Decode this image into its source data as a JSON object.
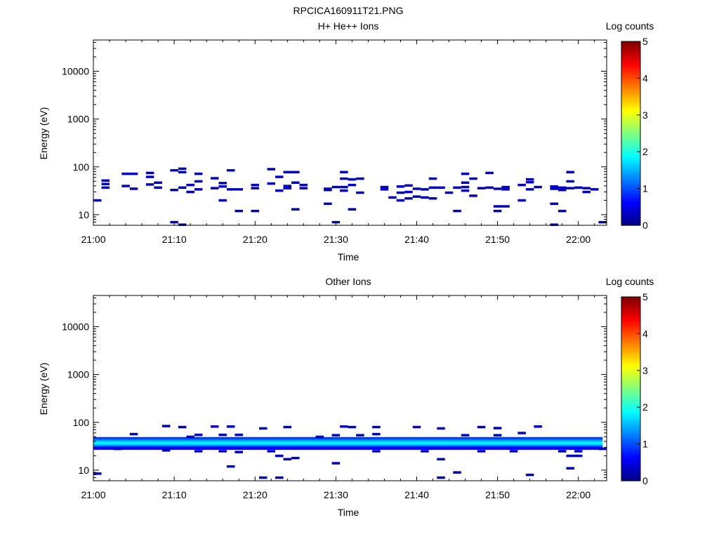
{
  "title": "RPCICA160911T21.PNG",
  "colormap": [
    "#00007f",
    "#0000ff",
    "#007fff",
    "#00ffff",
    "#7fff7f",
    "#ffff00",
    "#ff7f00",
    "#ff0000",
    "#7f0000"
  ],
  "chart_data": [
    {
      "type": "heatmap",
      "title": "H+ He++ Ions",
      "xlabel": "Time",
      "ylabel": "Energy (eV)",
      "y_scale": "log",
      "ylim": [
        6,
        45000
      ],
      "xlim": [
        "21:00",
        "22:03.5"
      ],
      "x_ticks": [
        "21:00",
        "21:10",
        "21:20",
        "21:30",
        "21:40",
        "21:50",
        "22:00"
      ],
      "y_ticks": [
        "10",
        "100",
        "1000",
        "10000"
      ],
      "colorbar": {
        "label": "Log counts",
        "range": [
          0,
          5
        ],
        "ticks": [
          "0",
          "1",
          "2",
          "3",
          "4",
          "5"
        ]
      },
      "cells": [
        {
          "t": "21:00.5",
          "e": 20,
          "v": 0.3
        },
        {
          "t": "21:01.5",
          "e": 52,
          "v": 0.3
        },
        {
          "t": "21:01.5",
          "e": 44,
          "v": 0.3
        },
        {
          "t": "21:01.5",
          "e": 37,
          "v": 0.3
        },
        {
          "t": "21:04",
          "e": 72,
          "v": 0.3
        },
        {
          "t": "21:04",
          "e": 40,
          "v": 0.3
        },
        {
          "t": "21:05",
          "e": 72,
          "v": 0.3
        },
        {
          "t": "21:05",
          "e": 35,
          "v": 0.2
        },
        {
          "t": "21:07",
          "e": 75,
          "v": 0.3
        },
        {
          "t": "21:07",
          "e": 62,
          "v": 0.3
        },
        {
          "t": "21:07",
          "e": 43,
          "v": 0.3
        },
        {
          "t": "21:08",
          "e": 47,
          "v": 0.3
        },
        {
          "t": "21:08",
          "e": 37,
          "v": 0.3
        },
        {
          "t": "21:10",
          "e": 85,
          "v": 0.3
        },
        {
          "t": "21:10",
          "e": 33,
          "v": 0.2
        },
        {
          "t": "21:10",
          "e": 7,
          "v": 0.3
        },
        {
          "t": "21:11",
          "e": 92,
          "v": 0.3
        },
        {
          "t": "21:11",
          "e": 78,
          "v": 0.3
        },
        {
          "t": "21:11",
          "e": 37,
          "v": 0.2
        },
        {
          "t": "21:11",
          "e": 6.2,
          "v": 0.3
        },
        {
          "t": "21:12",
          "e": 42,
          "v": 0.3
        },
        {
          "t": "21:12",
          "e": 30,
          "v": 0.2
        },
        {
          "t": "21:13",
          "e": 72,
          "v": 0.3
        },
        {
          "t": "21:13",
          "e": 50,
          "v": 0.3
        },
        {
          "t": "21:13",
          "e": 34,
          "v": 0.3
        },
        {
          "t": "21:15",
          "e": 58,
          "v": 0.3
        },
        {
          "t": "21:15",
          "e": 36,
          "v": 0.2
        },
        {
          "t": "21:16",
          "e": 46,
          "v": 0.3
        },
        {
          "t": "21:16",
          "e": 39,
          "v": 0.3
        },
        {
          "t": "21:16",
          "e": 20,
          "v": 0.3
        },
        {
          "t": "21:17",
          "e": 85,
          "v": 0.3
        },
        {
          "t": "21:17",
          "e": 34,
          "v": 0.3
        },
        {
          "t": "21:18",
          "e": 34,
          "v": 0.3
        },
        {
          "t": "21:18",
          "e": 12,
          "v": 0.3
        },
        {
          "t": "21:20",
          "e": 42,
          "v": 0.3
        },
        {
          "t": "21:20",
          "e": 36,
          "v": 0.2
        },
        {
          "t": "21:20",
          "e": 12,
          "v": 0.3
        },
        {
          "t": "21:22",
          "e": 90,
          "v": 0.3
        },
        {
          "t": "21:22",
          "e": 45,
          "v": 0.3
        },
        {
          "t": "21:23",
          "e": 62,
          "v": 0.3
        },
        {
          "t": "21:23",
          "e": 32,
          "v": 0.3
        },
        {
          "t": "21:24",
          "e": 78,
          "v": 0.3
        },
        {
          "t": "21:24",
          "e": 40,
          "v": 0.3
        },
        {
          "t": "21:24",
          "e": 36,
          "v": 0.3
        },
        {
          "t": "21:25",
          "e": 78,
          "v": 0.3
        },
        {
          "t": "21:25",
          "e": 47,
          "v": 0.3
        },
        {
          "t": "21:25",
          "e": 13,
          "v": 0.2
        },
        {
          "t": "21:26",
          "e": 42,
          "v": 0.3
        },
        {
          "t": "21:26",
          "e": 36,
          "v": 0.2
        },
        {
          "t": "21:29",
          "e": 35,
          "v": 0.3
        },
        {
          "t": "21:29",
          "e": 33,
          "v": 0.3
        },
        {
          "t": "21:29",
          "e": 17,
          "v": 0.3
        },
        {
          "t": "21:30",
          "e": 38,
          "v": 0.3
        },
        {
          "t": "21:30",
          "e": 7,
          "v": 0.2
        },
        {
          "t": "21:31",
          "e": 78,
          "v": 0.3
        },
        {
          "t": "21:31",
          "e": 57,
          "v": 0.3
        },
        {
          "t": "21:31",
          "e": 38,
          "v": 0.3
        },
        {
          "t": "21:31",
          "e": 32,
          "v": 0.2
        },
        {
          "t": "21:32",
          "e": 55,
          "v": 0.3
        },
        {
          "t": "21:32",
          "e": 42,
          "v": 0.3
        },
        {
          "t": "21:32",
          "e": 13,
          "v": 0.2
        },
        {
          "t": "21:33",
          "e": 57,
          "v": 0.3
        },
        {
          "t": "21:33",
          "e": 29,
          "v": 0.3
        },
        {
          "t": "21:36",
          "e": 38,
          "v": 0.2
        },
        {
          "t": "21:36",
          "e": 34,
          "v": 0.3
        },
        {
          "t": "21:37",
          "e": 23,
          "v": 0.3
        },
        {
          "t": "21:38",
          "e": 39,
          "v": 0.3
        },
        {
          "t": "21:38",
          "e": 29,
          "v": 0.3
        },
        {
          "t": "21:38",
          "e": 20,
          "v": 0.3
        },
        {
          "t": "21:39",
          "e": 41,
          "v": 0.3
        },
        {
          "t": "21:39",
          "e": 30,
          "v": 0.3
        },
        {
          "t": "21:39",
          "e": 22,
          "v": 0.3
        },
        {
          "t": "21:40",
          "e": 35,
          "v": 0.3
        },
        {
          "t": "21:40",
          "e": 24,
          "v": 0.3
        },
        {
          "t": "21:41",
          "e": 34,
          "v": 0.3
        },
        {
          "t": "21:41",
          "e": 23,
          "v": 0.3
        },
        {
          "t": "21:42",
          "e": 57,
          "v": 0.3
        },
        {
          "t": "21:42",
          "e": 37,
          "v": 0.3
        },
        {
          "t": "21:42",
          "e": 22,
          "v": 0.3
        },
        {
          "t": "21:43",
          "e": 37,
          "v": 0.3
        },
        {
          "t": "21:44",
          "e": 29,
          "v": 0.3
        },
        {
          "t": "21:45",
          "e": 37,
          "v": 0.3
        },
        {
          "t": "21:45",
          "e": 12,
          "v": 0.3
        },
        {
          "t": "21:46",
          "e": 72,
          "v": 0.3
        },
        {
          "t": "21:46",
          "e": 47,
          "v": 0.3
        },
        {
          "t": "21:46",
          "e": 38,
          "v": 0.2
        },
        {
          "t": "21:46",
          "e": 32,
          "v": 0.3
        },
        {
          "t": "21:47",
          "e": 57,
          "v": 0.3
        },
        {
          "t": "21:47",
          "e": 25,
          "v": 0.3
        },
        {
          "t": "21:48",
          "e": 36,
          "v": 0.2
        },
        {
          "t": "21:49",
          "e": 75,
          "v": 0.3
        },
        {
          "t": "21:49",
          "e": 37,
          "v": 0.3
        },
        {
          "t": "21:50",
          "e": 35,
          "v": 0.3
        },
        {
          "t": "21:50",
          "e": 15,
          "v": 0.3
        },
        {
          "t": "21:50",
          "e": 12,
          "v": 0.3
        },
        {
          "t": "21:51",
          "e": 38,
          "v": 0.3
        },
        {
          "t": "21:51",
          "e": 34,
          "v": 0.3
        },
        {
          "t": "21:51",
          "e": 15,
          "v": 0.3
        },
        {
          "t": "21:53",
          "e": 42,
          "v": 0.3
        },
        {
          "t": "21:53",
          "e": 20,
          "v": 0.3
        },
        {
          "t": "21:54",
          "e": 55,
          "v": 0.3
        },
        {
          "t": "21:54",
          "e": 48,
          "v": 0.3
        },
        {
          "t": "21:54",
          "e": 34,
          "v": 0.3
        },
        {
          "t": "21:55",
          "e": 38,
          "v": 0.3
        },
        {
          "t": "21:57",
          "e": 39,
          "v": 0.3
        },
        {
          "t": "21:57",
          "e": 35,
          "v": 0.3
        },
        {
          "t": "21:57",
          "e": 17,
          "v": 0.3
        },
        {
          "t": "21:57",
          "e": 6.2,
          "v": 0.3
        },
        {
          "t": "21:58",
          "e": 37,
          "v": 0.3
        },
        {
          "t": "21:58",
          "e": 33,
          "v": 0.3
        },
        {
          "t": "21:58",
          "e": 12,
          "v": 0.3
        },
        {
          "t": "21:59",
          "e": 78,
          "v": 0.3
        },
        {
          "t": "21:59",
          "e": 50,
          "v": 0.3
        },
        {
          "t": "21:59",
          "e": 36,
          "v": 0.3
        },
        {
          "t": "22:00",
          "e": 37,
          "v": 0.3
        },
        {
          "t": "22:01",
          "e": 36,
          "v": 0.3
        },
        {
          "t": "22:01",
          "e": 30,
          "v": 0.3
        },
        {
          "t": "22:02",
          "e": 34,
          "v": 0.3
        },
        {
          "t": "22:03",
          "e": 7,
          "v": 0.2
        }
      ]
    },
    {
      "type": "heatmap",
      "title": "Other Ions",
      "xlabel": "Time",
      "ylabel": "Energy (eV)",
      "y_scale": "log",
      "ylim": [
        6,
        45000
      ],
      "xlim": [
        "21:00",
        "22:03.5"
      ],
      "x_ticks": [
        "21:00",
        "21:10",
        "21:20",
        "21:30",
        "21:40",
        "21:50",
        "22:00"
      ],
      "y_ticks": [
        "10",
        "100",
        "1000",
        "10000"
      ],
      "colorbar": {
        "label": "Log counts",
        "range": [
          0,
          5
        ],
        "ticks": [
          "0",
          "1",
          "2",
          "3",
          "4",
          "5"
        ]
      },
      "band": {
        "t_start": "21:00",
        "t_end": "22:03",
        "energies": [
          46,
          42,
          39,
          36,
          33,
          31,
          29
        ],
        "levels": [
          0.9,
          1.2,
          1.6,
          1.85,
          1.6,
          1.2,
          0.6
        ]
      },
      "cells": [
        {
          "t": "21:00.5",
          "e": 8.5,
          "v": 0.3
        },
        {
          "t": "21:03",
          "e": 28,
          "v": 0.3
        },
        {
          "t": "21:05",
          "e": 57,
          "v": 0.3
        },
        {
          "t": "21:09",
          "e": 84,
          "v": 0.3
        },
        {
          "t": "21:09",
          "e": 26,
          "v": 0.2
        },
        {
          "t": "21:11",
          "e": 80,
          "v": 0.3
        },
        {
          "t": "21:12",
          "e": 50,
          "v": 0.3
        },
        {
          "t": "21:13",
          "e": 55,
          "v": 0.3
        },
        {
          "t": "21:13",
          "e": 25,
          "v": 0.3
        },
        {
          "t": "21:15",
          "e": 82,
          "v": 0.3
        },
        {
          "t": "21:16",
          "e": 55,
          "v": 0.3
        },
        {
          "t": "21:16",
          "e": 25,
          "v": 0.3
        },
        {
          "t": "21:17",
          "e": 82,
          "v": 0.3
        },
        {
          "t": "21:17",
          "e": 12,
          "v": 0.3
        },
        {
          "t": "21:18",
          "e": 55,
          "v": 0.3
        },
        {
          "t": "21:18",
          "e": 24,
          "v": 0.3
        },
        {
          "t": "21:21",
          "e": 75,
          "v": 0.3
        },
        {
          "t": "21:21",
          "e": 7,
          "v": 0.3
        },
        {
          "t": "21:22",
          "e": 25,
          "v": 0.3
        },
        {
          "t": "21:23",
          "e": 20,
          "v": 0.3
        },
        {
          "t": "21:23",
          "e": 7,
          "v": 0.2
        },
        {
          "t": "21:24",
          "e": 80,
          "v": 0.3
        },
        {
          "t": "21:24",
          "e": 17,
          "v": 0.3
        },
        {
          "t": "21:25",
          "e": 18,
          "v": 0.3
        },
        {
          "t": "21:28",
          "e": 50,
          "v": 0.3
        },
        {
          "t": "21:30",
          "e": 54,
          "v": 0.3
        },
        {
          "t": "21:30",
          "e": 14,
          "v": 0.3
        },
        {
          "t": "21:31",
          "e": 82,
          "v": 0.3
        },
        {
          "t": "21:32",
          "e": 80,
          "v": 0.3
        },
        {
          "t": "21:33",
          "e": 54,
          "v": 0.3
        },
        {
          "t": "21:35",
          "e": 80,
          "v": 0.3
        },
        {
          "t": "21:35",
          "e": 57,
          "v": 0.3
        },
        {
          "t": "21:35",
          "e": 25,
          "v": 0.3
        },
        {
          "t": "21:40",
          "e": 80,
          "v": 0.3
        },
        {
          "t": "21:41",
          "e": 25,
          "v": 0.3
        },
        {
          "t": "21:43",
          "e": 75,
          "v": 0.3
        },
        {
          "t": "21:43",
          "e": 17,
          "v": 0.3
        },
        {
          "t": "21:43",
          "e": 7,
          "v": 0.2
        },
        {
          "t": "21:45",
          "e": 9,
          "v": 0.2
        },
        {
          "t": "21:46",
          "e": 54,
          "v": 0.3
        },
        {
          "t": "21:48",
          "e": 80,
          "v": 0.3
        },
        {
          "t": "21:48",
          "e": 25,
          "v": 0.3
        },
        {
          "t": "21:50",
          "e": 76,
          "v": 0.2
        },
        {
          "t": "21:50",
          "e": 54,
          "v": 0.3
        },
        {
          "t": "21:52",
          "e": 25,
          "v": 0.3
        },
        {
          "t": "21:53",
          "e": 60,
          "v": 0.3
        },
        {
          "t": "21:54",
          "e": 8,
          "v": 0.2
        },
        {
          "t": "21:55",
          "e": 82,
          "v": 0.3
        },
        {
          "t": "21:58",
          "e": 25,
          "v": 0.2
        },
        {
          "t": "21:59",
          "e": 20,
          "v": 0.3
        },
        {
          "t": "21:59",
          "e": 11,
          "v": 0.3
        },
        {
          "t": "22:00",
          "e": 20,
          "v": 0.3
        },
        {
          "t": "22:00",
          "e": 25,
          "v": 0.3
        },
        {
          "t": "22:03",
          "e": 28,
          "v": 0.3
        }
      ]
    }
  ]
}
